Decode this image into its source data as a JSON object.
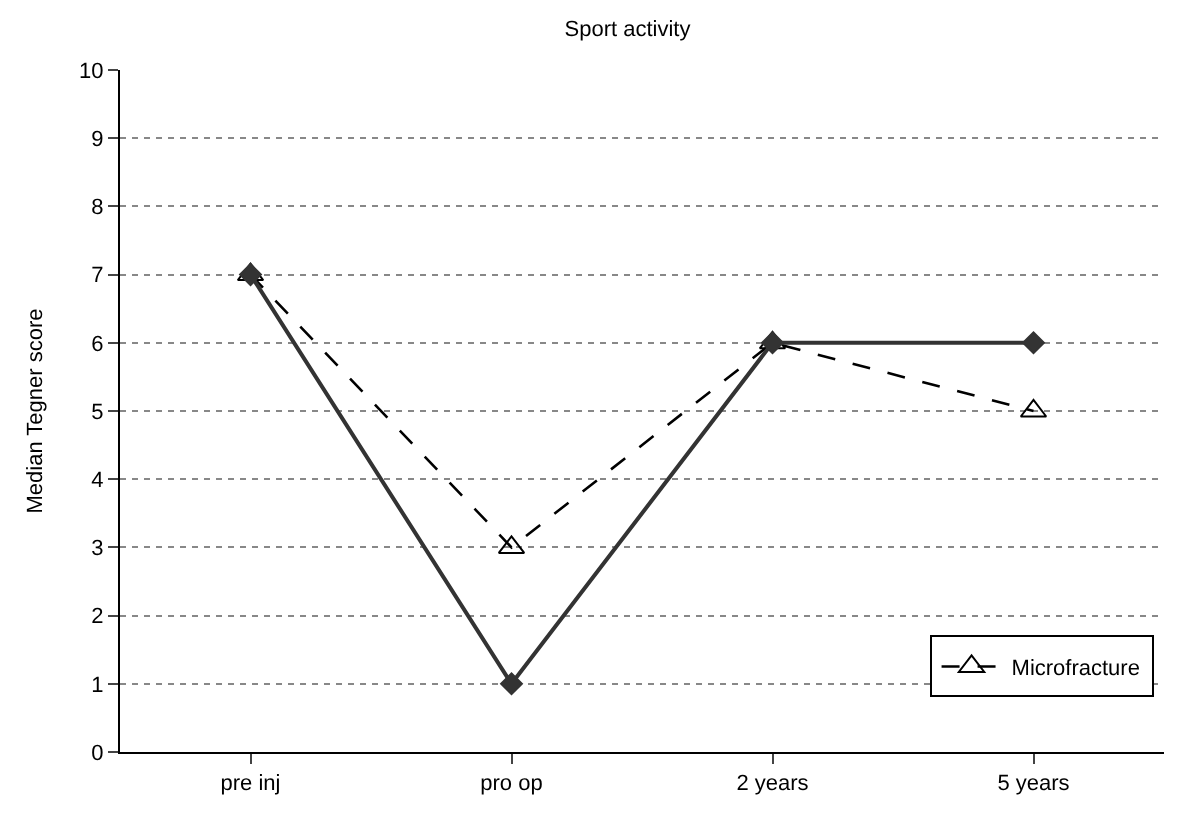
{
  "chart_data": {
    "type": "line",
    "title": "Sport activity",
    "ylabel": "Median Tegner score",
    "categories": [
      "pre inj",
      "pro op",
      "2 years",
      "5 years"
    ],
    "series": [
      {
        "name": "Microfracture",
        "color": "#000000",
        "values": [
          7,
          3,
          6,
          5
        ],
        "marker": "triangle",
        "line_style": "dashed"
      },
      {
        "color": "#333333",
        "values": [
          7,
          1,
          6,
          6
        ],
        "marker": "diamond",
        "line_style": "solid"
      }
    ],
    "ylim": [
      0,
      10
    ],
    "yticks": [
      0,
      1,
      2,
      3,
      4,
      5,
      6,
      7,
      8,
      9,
      10
    ],
    "grid": "y",
    "legend": "bottom right"
  }
}
